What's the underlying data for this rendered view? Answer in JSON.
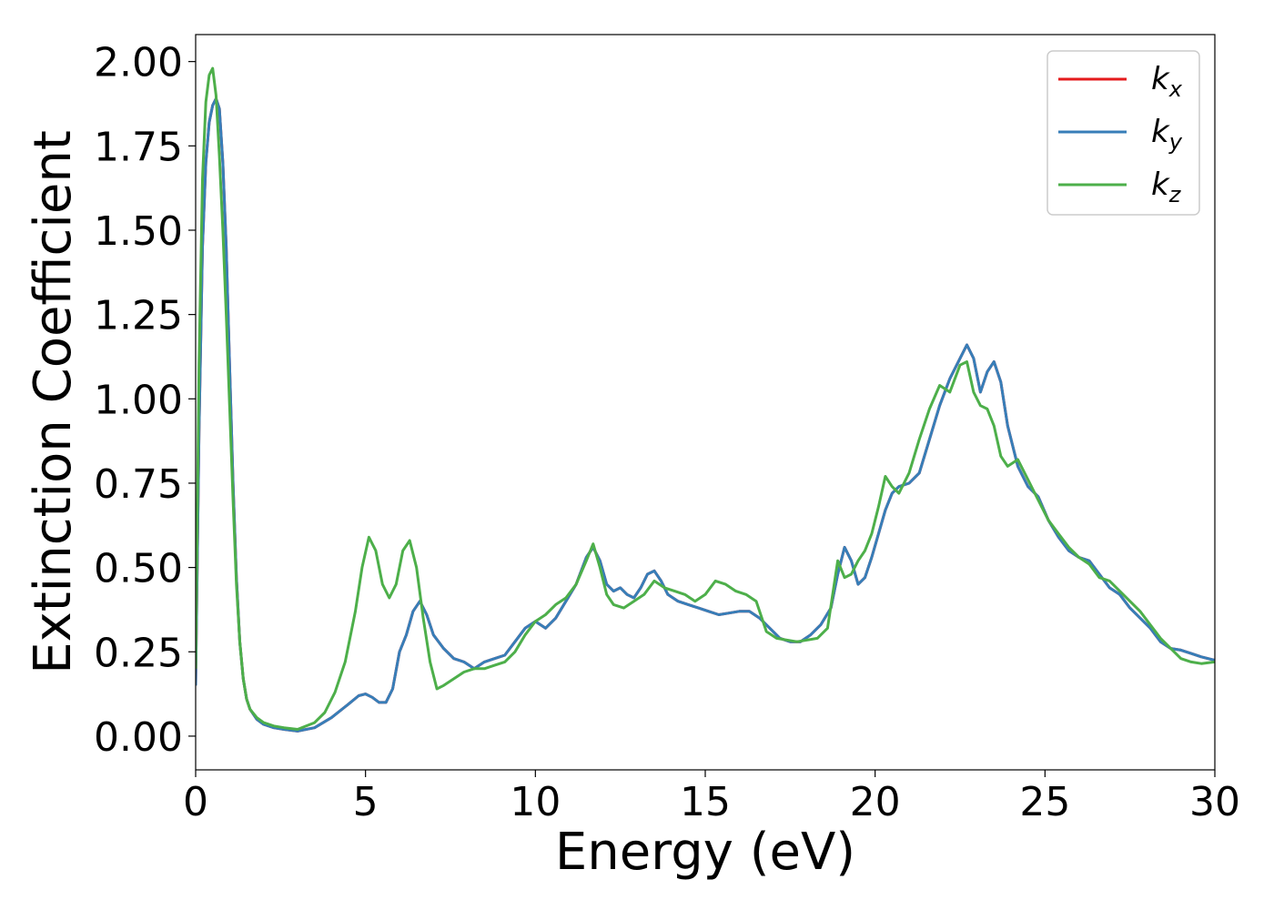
{
  "chart_data": {
    "type": "line",
    "xlabel": "Energy (eV)",
    "ylabel": "Extinction Coefficient",
    "xlim": [
      0,
      30
    ],
    "ylim": [
      -0.1,
      2.08
    ],
    "xticks": [
      0,
      5,
      10,
      15,
      20,
      25,
      30
    ],
    "xtick_labels": [
      "0",
      "5",
      "10",
      "15",
      "20",
      "25",
      "30"
    ],
    "yticks": [
      0.0,
      0.25,
      0.5,
      0.75,
      1.0,
      1.25,
      1.5,
      1.75,
      2.0
    ],
    "ytick_labels": [
      "0.00",
      "0.25",
      "0.50",
      "0.75",
      "1.00",
      "1.25",
      "1.50",
      "1.75",
      "2.00"
    ],
    "grid": false,
    "legend_position": "top-right",
    "series": [
      {
        "name": "k_x",
        "legend_base": "k",
        "legend_sub": "x",
        "color": "#e41a1c",
        "x": [
          0,
          0.1,
          0.2,
          0.3,
          0.4,
          0.5,
          0.6,
          0.7,
          0.8,
          0.9,
          1.0,
          1.1,
          1.2,
          1.3,
          1.4,
          1.5,
          1.6,
          1.8,
          2.0,
          2.3,
          2.6,
          3.0,
          3.5,
          4.0,
          4.5,
          4.8,
          5.0,
          5.2,
          5.4,
          5.6,
          5.8,
          6.0,
          6.2,
          6.4,
          6.6,
          6.8,
          7.0,
          7.3,
          7.6,
          7.9,
          8.2,
          8.5,
          8.8,
          9.1,
          9.4,
          9.7,
          10.0,
          10.3,
          10.6,
          10.9,
          11.2,
          11.5,
          11.7,
          11.9,
          12.1,
          12.3,
          12.5,
          12.7,
          12.9,
          13.1,
          13.3,
          13.5,
          13.7,
          13.9,
          14.2,
          14.5,
          14.8,
          15.1,
          15.4,
          15.7,
          16.0,
          16.3,
          16.6,
          16.9,
          17.2,
          17.5,
          17.8,
          18.1,
          18.4,
          18.7,
          18.9,
          19.1,
          19.3,
          19.5,
          19.7,
          19.9,
          20.1,
          20.3,
          20.5,
          20.7,
          21.0,
          21.3,
          21.6,
          21.9,
          22.2,
          22.5,
          22.7,
          22.9,
          23.1,
          23.3,
          23.5,
          23.7,
          23.9,
          24.2,
          24.5,
          24.8,
          25.1,
          25.4,
          25.7,
          26.0,
          26.3,
          26.6,
          26.9,
          27.2,
          27.5,
          27.8,
          28.1,
          28.4,
          28.7,
          29.0,
          29.3,
          29.6,
          30.0
        ],
        "y": [
          0.15,
          0.9,
          1.45,
          1.7,
          1.82,
          1.87,
          1.89,
          1.86,
          1.7,
          1.45,
          1.1,
          0.75,
          0.47,
          0.28,
          0.17,
          0.11,
          0.08,
          0.05,
          0.035,
          0.025,
          0.02,
          0.015,
          0.025,
          0.055,
          0.095,
          0.12,
          0.125,
          0.115,
          0.1,
          0.1,
          0.14,
          0.25,
          0.3,
          0.37,
          0.4,
          0.36,
          0.3,
          0.26,
          0.23,
          0.22,
          0.2,
          0.22,
          0.23,
          0.24,
          0.28,
          0.32,
          0.34,
          0.32,
          0.35,
          0.4,
          0.45,
          0.53,
          0.56,
          0.52,
          0.45,
          0.43,
          0.44,
          0.42,
          0.41,
          0.44,
          0.48,
          0.49,
          0.46,
          0.42,
          0.4,
          0.39,
          0.38,
          0.37,
          0.36,
          0.365,
          0.37,
          0.37,
          0.35,
          0.32,
          0.29,
          0.28,
          0.28,
          0.3,
          0.33,
          0.38,
          0.48,
          0.56,
          0.52,
          0.45,
          0.47,
          0.53,
          0.6,
          0.67,
          0.72,
          0.74,
          0.75,
          0.78,
          0.88,
          0.98,
          1.06,
          1.12,
          1.16,
          1.12,
          1.02,
          1.08,
          1.11,
          1.05,
          0.92,
          0.8,
          0.74,
          0.71,
          0.64,
          0.59,
          0.55,
          0.53,
          0.52,
          0.48,
          0.44,
          0.42,
          0.38,
          0.35,
          0.32,
          0.28,
          0.26,
          0.255,
          0.245,
          0.235,
          0.225
        ]
      },
      {
        "name": "k_y",
        "legend_base": "k",
        "legend_sub": "y",
        "color": "#377eb8",
        "x": [
          0,
          0.1,
          0.2,
          0.3,
          0.4,
          0.5,
          0.6,
          0.7,
          0.8,
          0.9,
          1.0,
          1.1,
          1.2,
          1.3,
          1.4,
          1.5,
          1.6,
          1.8,
          2.0,
          2.3,
          2.6,
          3.0,
          3.5,
          4.0,
          4.5,
          4.8,
          5.0,
          5.2,
          5.4,
          5.6,
          5.8,
          6.0,
          6.2,
          6.4,
          6.6,
          6.8,
          7.0,
          7.3,
          7.6,
          7.9,
          8.2,
          8.5,
          8.8,
          9.1,
          9.4,
          9.7,
          10.0,
          10.3,
          10.6,
          10.9,
          11.2,
          11.5,
          11.7,
          11.9,
          12.1,
          12.3,
          12.5,
          12.7,
          12.9,
          13.1,
          13.3,
          13.5,
          13.7,
          13.9,
          14.2,
          14.5,
          14.8,
          15.1,
          15.4,
          15.7,
          16.0,
          16.3,
          16.6,
          16.9,
          17.2,
          17.5,
          17.8,
          18.1,
          18.4,
          18.7,
          18.9,
          19.1,
          19.3,
          19.5,
          19.7,
          19.9,
          20.1,
          20.3,
          20.5,
          20.7,
          21.0,
          21.3,
          21.6,
          21.9,
          22.2,
          22.5,
          22.7,
          22.9,
          23.1,
          23.3,
          23.5,
          23.7,
          23.9,
          24.2,
          24.5,
          24.8,
          25.1,
          25.4,
          25.7,
          26.0,
          26.3,
          26.6,
          26.9,
          27.2,
          27.5,
          27.8,
          28.1,
          28.4,
          28.7,
          29.0,
          29.3,
          29.6,
          30.0
        ],
        "y": [
          0.15,
          0.9,
          1.45,
          1.7,
          1.82,
          1.87,
          1.89,
          1.86,
          1.7,
          1.45,
          1.1,
          0.75,
          0.47,
          0.28,
          0.17,
          0.11,
          0.08,
          0.05,
          0.035,
          0.025,
          0.02,
          0.015,
          0.025,
          0.055,
          0.095,
          0.12,
          0.125,
          0.115,
          0.1,
          0.1,
          0.14,
          0.25,
          0.3,
          0.37,
          0.4,
          0.36,
          0.3,
          0.26,
          0.23,
          0.22,
          0.2,
          0.22,
          0.23,
          0.24,
          0.28,
          0.32,
          0.34,
          0.32,
          0.35,
          0.4,
          0.45,
          0.53,
          0.56,
          0.52,
          0.45,
          0.43,
          0.44,
          0.42,
          0.41,
          0.44,
          0.48,
          0.49,
          0.46,
          0.42,
          0.4,
          0.39,
          0.38,
          0.37,
          0.36,
          0.365,
          0.37,
          0.37,
          0.35,
          0.32,
          0.29,
          0.28,
          0.28,
          0.3,
          0.33,
          0.38,
          0.48,
          0.56,
          0.52,
          0.45,
          0.47,
          0.53,
          0.6,
          0.67,
          0.72,
          0.74,
          0.75,
          0.78,
          0.88,
          0.98,
          1.06,
          1.12,
          1.16,
          1.12,
          1.02,
          1.08,
          1.11,
          1.05,
          0.92,
          0.8,
          0.74,
          0.71,
          0.64,
          0.59,
          0.55,
          0.53,
          0.52,
          0.48,
          0.44,
          0.42,
          0.38,
          0.35,
          0.32,
          0.28,
          0.26,
          0.255,
          0.245,
          0.235,
          0.225
        ]
      },
      {
        "name": "k_z",
        "legend_base": "k",
        "legend_sub": "z",
        "color": "#4daf4a",
        "x": [
          0,
          0.1,
          0.2,
          0.3,
          0.4,
          0.5,
          0.6,
          0.7,
          0.8,
          0.9,
          1.0,
          1.1,
          1.2,
          1.3,
          1.4,
          1.5,
          1.6,
          1.8,
          2.0,
          2.3,
          2.6,
          3.0,
          3.5,
          3.8,
          4.1,
          4.4,
          4.7,
          4.9,
          5.1,
          5.3,
          5.5,
          5.7,
          5.9,
          6.1,
          6.3,
          6.5,
          6.7,
          6.9,
          7.1,
          7.3,
          7.6,
          7.9,
          8.2,
          8.5,
          8.8,
          9.1,
          9.4,
          9.7,
          10.0,
          10.3,
          10.6,
          10.9,
          11.2,
          11.5,
          11.7,
          11.9,
          12.1,
          12.3,
          12.6,
          12.9,
          13.2,
          13.5,
          13.8,
          14.1,
          14.4,
          14.7,
          15.0,
          15.3,
          15.6,
          15.9,
          16.2,
          16.5,
          16.8,
          17.1,
          17.4,
          17.7,
          18.0,
          18.3,
          18.6,
          18.9,
          19.1,
          19.3,
          19.5,
          19.7,
          19.9,
          20.1,
          20.3,
          20.5,
          20.7,
          21.0,
          21.3,
          21.6,
          21.9,
          22.2,
          22.5,
          22.7,
          22.9,
          23.1,
          23.3,
          23.5,
          23.7,
          23.9,
          24.2,
          24.5,
          24.8,
          25.1,
          25.4,
          25.7,
          26.0,
          26.3,
          26.6,
          26.9,
          27.2,
          27.5,
          27.8,
          28.1,
          28.4,
          28.7,
          29.0,
          29.3,
          29.6,
          30.0
        ],
        "y": [
          0.2,
          1.1,
          1.65,
          1.88,
          1.96,
          1.98,
          1.9,
          1.72,
          1.5,
          1.25,
          0.98,
          0.7,
          0.45,
          0.28,
          0.17,
          0.11,
          0.08,
          0.055,
          0.04,
          0.03,
          0.025,
          0.02,
          0.04,
          0.07,
          0.13,
          0.22,
          0.37,
          0.5,
          0.59,
          0.55,
          0.45,
          0.41,
          0.45,
          0.55,
          0.58,
          0.5,
          0.35,
          0.22,
          0.14,
          0.15,
          0.17,
          0.19,
          0.2,
          0.2,
          0.21,
          0.22,
          0.25,
          0.3,
          0.34,
          0.36,
          0.39,
          0.41,
          0.45,
          0.52,
          0.57,
          0.5,
          0.42,
          0.39,
          0.38,
          0.4,
          0.42,
          0.46,
          0.44,
          0.43,
          0.42,
          0.4,
          0.42,
          0.46,
          0.45,
          0.43,
          0.42,
          0.4,
          0.31,
          0.29,
          0.285,
          0.28,
          0.285,
          0.29,
          0.32,
          0.52,
          0.47,
          0.48,
          0.52,
          0.55,
          0.6,
          0.68,
          0.77,
          0.74,
          0.72,
          0.78,
          0.88,
          0.97,
          1.04,
          1.02,
          1.1,
          1.11,
          1.02,
          0.98,
          0.97,
          0.92,
          0.83,
          0.8,
          0.82,
          0.76,
          0.7,
          0.64,
          0.6,
          0.56,
          0.53,
          0.51,
          0.47,
          0.46,
          0.43,
          0.4,
          0.37,
          0.33,
          0.29,
          0.26,
          0.23,
          0.22,
          0.215,
          0.22
        ]
      }
    ]
  }
}
